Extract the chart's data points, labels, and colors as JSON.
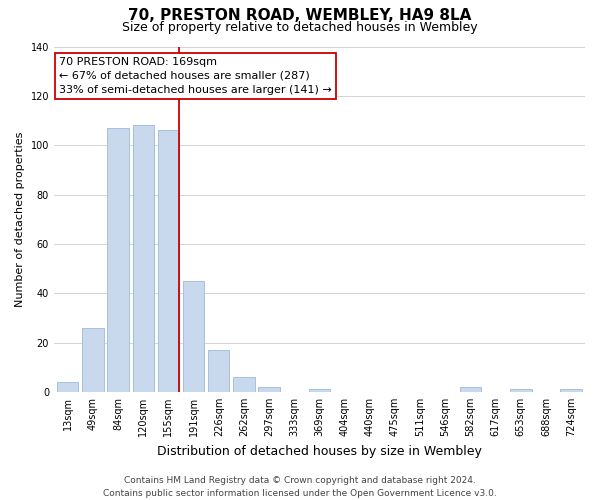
{
  "title": "70, PRESTON ROAD, WEMBLEY, HA9 8LA",
  "subtitle": "Size of property relative to detached houses in Wembley",
  "xlabel": "Distribution of detached houses by size in Wembley",
  "ylabel": "Number of detached properties",
  "bar_labels": [
    "13sqm",
    "49sqm",
    "84sqm",
    "120sqm",
    "155sqm",
    "191sqm",
    "226sqm",
    "262sqm",
    "297sqm",
    "333sqm",
    "369sqm",
    "404sqm",
    "440sqm",
    "475sqm",
    "511sqm",
    "546sqm",
    "582sqm",
    "617sqm",
    "653sqm",
    "688sqm",
    "724sqm"
  ],
  "bar_values": [
    4,
    26,
    107,
    108,
    106,
    45,
    17,
    6,
    2,
    0,
    1,
    0,
    0,
    0,
    0,
    0,
    2,
    0,
    1,
    0,
    1
  ],
  "bar_color": "#c8d9ee",
  "bar_edge_color": "#a8c0de",
  "grid_color": "#cccccc",
  "vline_color": "#cc0000",
  "annotation_line1": "70 PRESTON ROAD: 169sqm",
  "annotation_line2": "← 67% of detached houses are smaller (287)",
  "annotation_line3": "33% of semi-detached houses are larger (141) →",
  "annotation_box_color": "#ffffff",
  "annotation_box_edge": "#cc0000",
  "ylim": [
    0,
    140
  ],
  "yticks": [
    0,
    20,
    40,
    60,
    80,
    100,
    120,
    140
  ],
  "footer_line1": "Contains HM Land Registry data © Crown copyright and database right 2024.",
  "footer_line2": "Contains public sector information licensed under the Open Government Licence v3.0.",
  "bg_color": "#ffffff",
  "title_fontsize": 11,
  "subtitle_fontsize": 9,
  "xlabel_fontsize": 9,
  "ylabel_fontsize": 8,
  "tick_fontsize": 7,
  "annotation_fontsize": 8,
  "footer_fontsize": 6.5
}
